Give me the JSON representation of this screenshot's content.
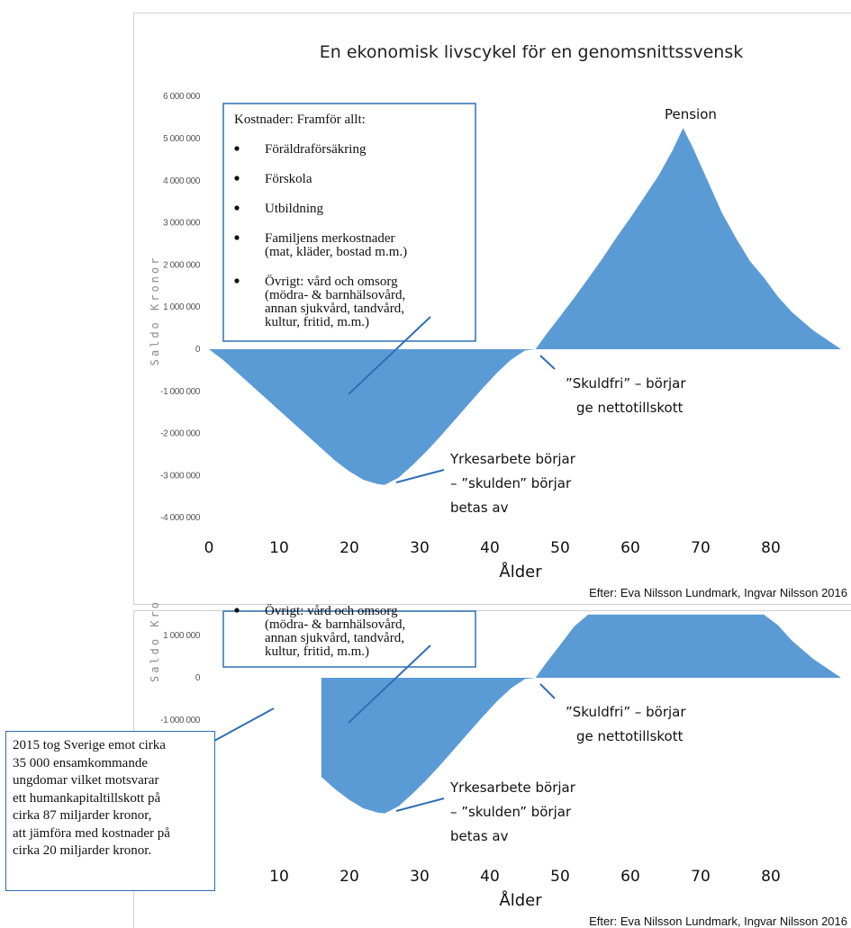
{
  "chart_data": {
    "type": "area",
    "title": "En ekonomisk livscykel för en genomsnittssvensk",
    "xlabel": "Ålder",
    "ylabel": "Saldo Kronor",
    "xlim": [
      0,
      90
    ],
    "ylim": [
      -4000000,
      6000000
    ],
    "x_ticks": [
      "0",
      "10",
      "20",
      "30",
      "40",
      "50",
      "60",
      "70",
      "80"
    ],
    "y_ticks": [
      "6 000 000",
      "5 000 000",
      "4 000 000",
      "3 000 000",
      "2 000 000",
      "1 000 000",
      "0",
      "-1 000 000",
      "-2 000 000",
      "-3 000 000",
      "-4 000 000"
    ],
    "area_color": "#5b9bd5",
    "series": [
      {
        "x": [
          0,
          2,
          4,
          6,
          8,
          10,
          12,
          14,
          16,
          18,
          20,
          22,
          24,
          25,
          27,
          29,
          31,
          33,
          35,
          37,
          39,
          41,
          43,
          45,
          46.5,
          48,
          50,
          52,
          54,
          56,
          58,
          60,
          62,
          64,
          66,
          67.5,
          69,
          71,
          73,
          75,
          77,
          79,
          81,
          83,
          86,
          90
        ],
        "y": [
          0,
          -250000,
          -550000,
          -850000,
          -1150000,
          -1450000,
          -1750000,
          -2050000,
          -2350000,
          -2650000,
          -2900000,
          -3100000,
          -3200000,
          -3220000,
          -3050000,
          -2750000,
          -2420000,
          -2060000,
          -1680000,
          -1300000,
          -920000,
          -560000,
          -250000,
          -30000,
          0,
          350000,
          780000,
          1220000,
          1680000,
          2150000,
          2650000,
          3120000,
          3620000,
          4120000,
          4720000,
          5250000,
          4750000,
          4000000,
          3250000,
          2650000,
          2100000,
          1700000,
          1250000,
          880000,
          450000,
          0
        ]
      }
    ],
    "annotations": {
      "pension": "Pension",
      "skuldfri_line1": "”Skuldfri” – börjar",
      "skuldfri_line2": "ge nettotillskott",
      "yrke_line1": "Yrkesarbete börjar",
      "yrke_line2": "– ”skulden” börjar",
      "yrke_line3": "betas av",
      "source": "Efter: Eva Nilsson Lundmark, Ingvar Nilsson 2016"
    },
    "costs_box": {
      "heading": "Kostnader: Framför allt:",
      "items": [
        {
          "lines": [
            "Föräldraförsäkring"
          ]
        },
        {
          "lines": [
            "Förskola"
          ]
        },
        {
          "lines": [
            "Utbildning"
          ]
        },
        {
          "lines": [
            "Familjens merkostnader",
            "(mat, kläder, bostad m.m.)"
          ]
        },
        {
          "lines": [
            "Övrigt:  vård och omsorg",
            "(mödra- & barnhälsovård,",
            "annan sjukvård, tandvård,",
            "kultur, fritid, m.m.)"
          ]
        }
      ]
    },
    "lower_panel": {
      "y_ticks": [
        "1 000 000",
        "0",
        "-1 000 000"
      ],
      "x_ticks": [
        "10",
        "20",
        "30",
        "40",
        "50",
        "60",
        "70",
        "80"
      ],
      "visible_x_from": 16,
      "visible_y_max": 1500000,
      "y_label_partial": "Saldo Kro",
      "box_partial_lines": [
        "Övrigt:  vård och omsorg",
        "(mödra- & barnhälsovård,",
        "annan sjukvård, tandvård,",
        "kultur, fritid, m.m.)"
      ],
      "note": [
        "2015 tog Sverige emot cirka",
        "35 000 ensamkommande",
        "ungdomar vilket motsvarar",
        "ett humankapitaltillskott på",
        "cirka 87 miljarder kronor,",
        "att jämföra med kostnader på",
        "cirka 20 miljarder kronor."
      ]
    }
  }
}
